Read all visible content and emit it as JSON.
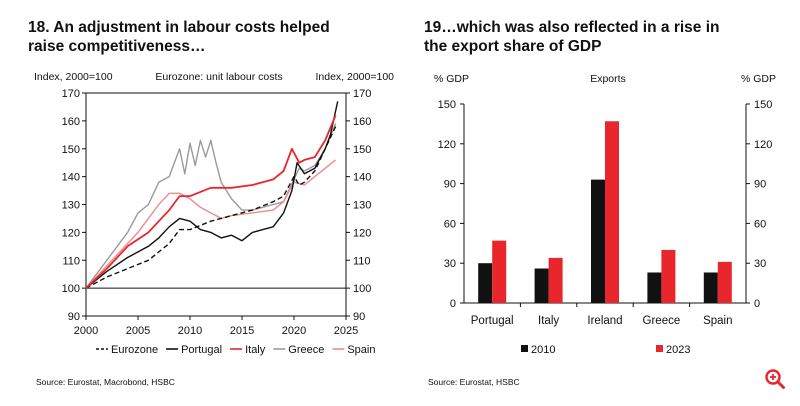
{
  "left": {
    "title_line1": "18. An adjustment in labour costs helped",
    "title_line2": "raise competitiveness…",
    "y_left_label": "Index, 2000=100",
    "subtitle": "Eurozone: unit labour costs",
    "y_right_label": "Index, 2000=100",
    "source": "Source: Eurostat, Macrobond, HSBC"
  },
  "right": {
    "title_line1": "19…which was also reflected in a rise in",
    "title_line2": "the export share of GDP",
    "y_left_label": "% GDP",
    "subtitle": "Exports",
    "y_right_label": "% GDP",
    "source": "Source: Eurostat, HSBC"
  },
  "colors": {
    "black": "#111111",
    "red": "#e8262c",
    "pink": "#f08a8d",
    "grey": "#9a9a9a",
    "lightgrey": "#c8c8c8",
    "zoom": "#e8262c"
  },
  "icons": {
    "zoom": "zoom-in-icon"
  },
  "chart_data": [
    {
      "type": "line",
      "title": "Eurozone: unit labour costs",
      "ylabel": "Index, 2000=100",
      "ylim": [
        90,
        170
      ],
      "xlim": [
        2000,
        2025
      ],
      "x_ticks": [
        2000,
        2005,
        2010,
        2015,
        2020,
        2025
      ],
      "y_ticks": [
        90,
        100,
        110,
        120,
        130,
        140,
        150,
        160,
        170
      ],
      "reference_line": 100,
      "series": [
        {
          "name": "Eurozone",
          "style": "dashed",
          "color": "#111111",
          "x": [
            2000,
            2002,
            2004,
            2006,
            2008,
            2009,
            2010,
            2012,
            2014,
            2016,
            2018,
            2019,
            2020,
            2020.5,
            2021,
            2022,
            2023,
            2024
          ],
          "y": [
            100,
            104,
            107,
            110,
            116,
            121,
            121,
            124,
            126,
            128,
            131,
            133,
            140,
            137,
            138,
            142,
            150,
            158
          ]
        },
        {
          "name": "Portugal",
          "style": "solid",
          "color": "#111111",
          "x": [
            2000,
            2002,
            2004,
            2006,
            2007,
            2008,
            2009,
            2010,
            2011,
            2012,
            2013,
            2014,
            2015,
            2016,
            2017,
            2018,
            2019,
            2019.8,
            2020.3,
            2021,
            2022,
            2023,
            2023.5,
            2024.2
          ],
          "y": [
            100,
            106,
            111,
            115,
            118,
            122,
            125,
            124,
            121,
            120,
            118,
            119,
            117,
            120,
            121,
            122,
            127,
            135,
            145,
            141,
            143,
            150,
            155,
            167
          ]
        },
        {
          "name": "Italy",
          "style": "solid",
          "color": "#e8262c",
          "x": [
            2000,
            2002,
            2004,
            2006,
            2007,
            2008,
            2009,
            2010,
            2012,
            2014,
            2016,
            2018,
            2019,
            2019.8,
            2020.5,
            2021,
            2022,
            2023,
            2024
          ],
          "y": [
            100,
            107,
            115,
            120,
            124,
            128,
            133,
            133,
            136,
            136,
            137,
            139,
            142,
            150,
            145,
            146,
            147,
            153,
            162
          ]
        },
        {
          "name": "Greece",
          "style": "solid",
          "color": "#9a9a9a",
          "x": [
            2000,
            2002,
            2004,
            2005,
            2006,
            2007,
            2008,
            2009,
            2009.5,
            2010,
            2010.5,
            2011,
            2011.5,
            2012,
            2012.5,
            2013,
            2014,
            2015,
            2016,
            2017,
            2018,
            2019,
            2020,
            2020.5,
            2021,
            2022,
            2023,
            2024
          ],
          "y": [
            100,
            110,
            120,
            127,
            130,
            138,
            140,
            150,
            141,
            152,
            144,
            153,
            147,
            153,
            145,
            138,
            132,
            128,
            128,
            129,
            130,
            131,
            139,
            143,
            142,
            144,
            150,
            159
          ]
        },
        {
          "name": "Spain",
          "style": "solid",
          "color": "#f08a8d",
          "x": [
            2000,
            2002,
            2004,
            2005,
            2006,
            2007,
            2008,
            2009,
            2010,
            2011,
            2012,
            2013,
            2014,
            2016,
            2018,
            2019,
            2020,
            2021,
            2022,
            2023,
            2024
          ],
          "y": [
            100,
            108,
            116,
            120,
            125,
            130,
            134,
            134,
            132,
            129,
            127,
            125,
            126,
            127,
            128,
            131,
            138,
            137,
            140,
            143,
            146
          ]
        }
      ]
    },
    {
      "type": "bar",
      "title": "Exports",
      "ylabel": "% GDP",
      "ylim": [
        0,
        150
      ],
      "y_ticks": [
        0,
        30,
        60,
        90,
        120,
        150
      ],
      "categories": [
        "Portugal",
        "Italy",
        "Ireland",
        "Greece",
        "Spain"
      ],
      "series": [
        {
          "name": "2010",
          "color": "#111111",
          "values": [
            30,
            26,
            93,
            23,
            23
          ]
        },
        {
          "name": "2023",
          "color": "#e8262c",
          "values": [
            47,
            34,
            137,
            40,
            31
          ]
        }
      ]
    }
  ]
}
